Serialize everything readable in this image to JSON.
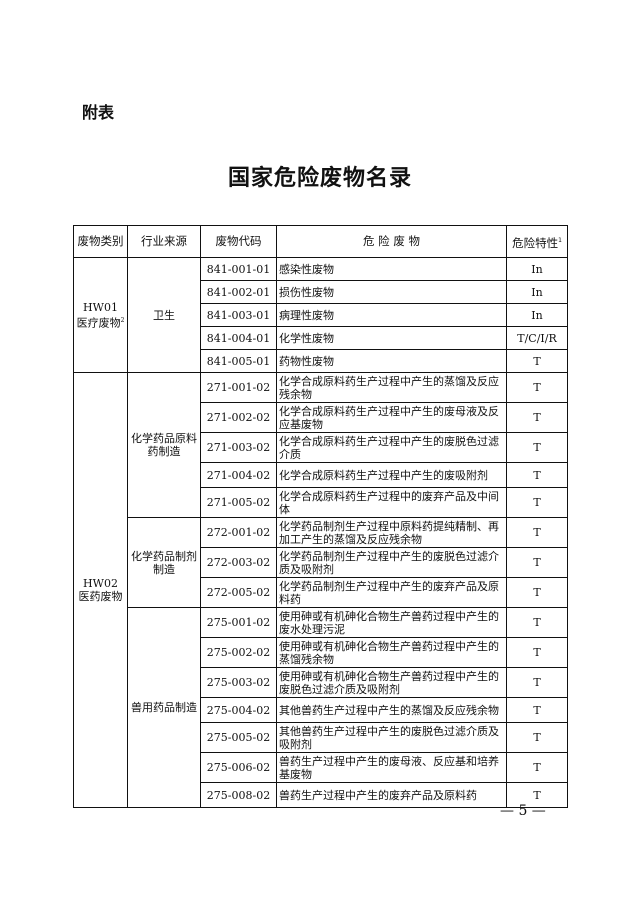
{
  "appendix_label": "附表",
  "title": "国家危险废物名录",
  "table": {
    "headers": {
      "category": "废物类别",
      "source": "行业来源",
      "code": "废物代码",
      "waste": "危 险 废 物",
      "hazard": "危险特性",
      "hazard_note": "1"
    },
    "groups": [
      {
        "code": "HW01",
        "name": "医疗废物",
        "note": "2",
        "sources": [
          {
            "name": "卫生",
            "rows": [
              {
                "code": "841-001-01",
                "waste": "感染性废物",
                "hazard": "In"
              },
              {
                "code": "841-002-01",
                "waste": "损伤性废物",
                "hazard": "In"
              },
              {
                "code": "841-003-01",
                "waste": "病理性废物",
                "hazard": "In"
              },
              {
                "code": "841-004-01",
                "waste": "化学性废物",
                "hazard": "T/C/I/R"
              },
              {
                "code": "841-005-01",
                "waste": "药物性废物",
                "hazard": "T"
              }
            ]
          }
        ]
      },
      {
        "code": "HW02",
        "name": "医药废物",
        "note": "",
        "sources": [
          {
            "name": "化学药品原料药制造",
            "rows": [
              {
                "code": "271-001-02",
                "waste": "化学合成原料药生产过程中产生的蒸馏及反应残余物",
                "hazard": "T"
              },
              {
                "code": "271-002-02",
                "waste": "化学合成原料药生产过程中产生的废母液及反应基废物",
                "hazard": "T"
              },
              {
                "code": "271-003-02",
                "waste": "化学合成原料药生产过程中产生的废脱色过滤介质",
                "hazard": "T"
              },
              {
                "code": "271-004-02",
                "waste": "化学合成原料药生产过程中产生的废吸附剂",
                "hazard": "T"
              },
              {
                "code": "271-005-02",
                "waste": "化学合成原料药生产过程中的废弃产品及中间体",
                "hazard": "T"
              }
            ]
          },
          {
            "name": "化学药品制剂制造",
            "rows": [
              {
                "code": "272-001-02",
                "waste": "化学药品制剂生产过程中原料药提纯精制、再加工产生的蒸馏及反应残余物",
                "hazard": "T"
              },
              {
                "code": "272-003-02",
                "waste": "化学药品制剂生产过程中产生的废脱色过滤介质及吸附剂",
                "hazard": "T"
              },
              {
                "code": "272-005-02",
                "waste": "化学药品制剂生产过程中产生的废弃产品及原料药",
                "hazard": "T"
              }
            ]
          },
          {
            "name": "兽用药品制造",
            "rows": [
              {
                "code": "275-001-02",
                "waste": "使用砷或有机砷化合物生产兽药过程中产生的废水处理污泥",
                "hazard": "T"
              },
              {
                "code": "275-002-02",
                "waste": "使用砷或有机砷化合物生产兽药过程中产生的蒸馏残余物",
                "hazard": "T"
              },
              {
                "code": "275-003-02",
                "waste": "使用砷或有机砷化合物生产兽药过程中产生的废脱色过滤介质及吸附剂",
                "hazard": "T"
              },
              {
                "code": "275-004-02",
                "waste": "其他兽药生产过程中产生的蒸馏及反应残余物",
                "hazard": "T"
              },
              {
                "code": "275-005-02",
                "waste": "其他兽药生产过程中产生的废脱色过滤介质及吸附剂",
                "hazard": "T"
              },
              {
                "code": "275-006-02",
                "waste": "兽药生产过程中产生的废母液、反应基和培养基废物",
                "hazard": "T"
              },
              {
                "code": "275-008-02",
                "waste": "兽药生产过程中产生的废弃产品及原料药",
                "hazard": "T"
              }
            ]
          }
        ]
      }
    ]
  },
  "page_number": "— 5 —"
}
